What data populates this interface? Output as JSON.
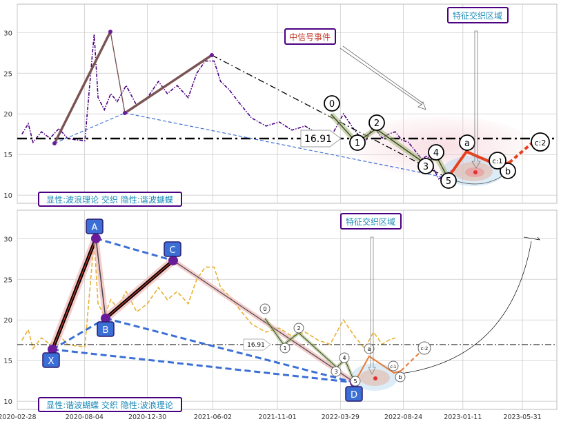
{
  "chart_data": [
    {
      "type": "line",
      "panel": "top",
      "ylim": [
        9,
        33.5
      ],
      "yticks": [
        10,
        15,
        20,
        25,
        30
      ],
      "xlim": [
        "2020-02-28",
        "2023-08-20"
      ],
      "grid": true,
      "hline": {
        "value": 16.91,
        "label": "16.91"
      },
      "series": [
        {
          "color": "#4b0082",
          "style": "dash-dot",
          "x": [
            "2020-03-10",
            "2020-03-25",
            "2020-04-05",
            "2020-04-25",
            "2020-05-15",
            "2020-06-05",
            "2020-06-25",
            "2020-07-15",
            "2020-08-05",
            "2020-08-22",
            "2020-08-27",
            "2020-09-05",
            "2020-09-20",
            "2020-10-05",
            "2020-10-20",
            "2020-11-10",
            "2020-12-05",
            "2020-12-30",
            "2021-01-25",
            "2021-02-15",
            "2021-03-10",
            "2021-04-05",
            "2021-04-25",
            "2021-05-15",
            "2021-06-05",
            "2021-06-20",
            "2021-07-10",
            "2021-08-01",
            "2021-09-01",
            "2021-10-05",
            "2021-11-05",
            "2021-12-05",
            "2022-01-05",
            "2022-02-05",
            "2022-03-05",
            "2022-04-05",
            "2022-05-01",
            "2022-05-25",
            "2022-06-15",
            "2022-07-05",
            "2022-07-20",
            "2022-08-05",
            "2022-08-20",
            "2022-09-05",
            "2022-09-20",
            "2022-10-05",
            "2022-10-20",
            "2022-11-01",
            "2022-11-15",
            "2022-12-01",
            "2022-12-15"
          ],
          "y": [
            17.5,
            18.8,
            16.5,
            17.8,
            17.0,
            18.2,
            17.0,
            16.8,
            16.7,
            27.0,
            29.8,
            22.0,
            20.5,
            22.5,
            21.5,
            23.5,
            21.0,
            22.0,
            24.0,
            22.5,
            23.5,
            22.0,
            25.0,
            26.5,
            26.5,
            24.0,
            23.0,
            21.5,
            19.5,
            18.5,
            19.0,
            18.0,
            18.5,
            17.5,
            17.0,
            20.0,
            18.0,
            16.5,
            18.5,
            17.0,
            17.5,
            17.8,
            16.8,
            16.5,
            15.5,
            14.5,
            14.8,
            13.5,
            12.0,
            12.5,
            13.0
          ]
        }
      ],
      "harmonic_legs": [
        {
          "from": [
            "2020-03-20",
            16.3
          ],
          "to": [
            "2020-08-28",
            29.8
          ]
        },
        {
          "from": [
            "2020-08-28",
            29.8
          ],
          "to": [
            "2020-10-01",
            20.0
          ]
        },
        {
          "from": [
            "2020-10-01",
            20.0
          ],
          "to": [
            "2021-06-05",
            27.1
          ]
        }
      ],
      "wave_labels": [
        "0",
        "1",
        "2",
        "3",
        "4",
        "5",
        "a",
        "b",
        "c:1",
        "c:2"
      ],
      "wave_points": [
        {
          "label": "0",
          "x": "2022-05-30",
          "y": 20.3
        },
        {
          "label": "1",
          "x": "2022-06-25",
          "y": 16.7
        },
        {
          "label": "2",
          "x": "2022-07-25",
          "y": 18.3
        },
        {
          "label": "3",
          "x": "2022-09-20",
          "y": 13.8
        },
        {
          "label": "4",
          "x": "2022-10-05",
          "y": 15.0
        },
        {
          "label": "5",
          "x": "2022-10-25",
          "y": 12.0
        },
        {
          "label": "a",
          "x": "2022-12-05",
          "y": 15.5
        },
        {
          "label": "b",
          "x": "2023-01-10",
          "y": 13.5
        },
        {
          "label": "c:1",
          "x": "2022-12-25",
          "y": 13.3
        },
        {
          "label": "c:2",
          "x": "2023-02-15",
          "y": 17.0
        }
      ],
      "annotations": [
        "中信号事件",
        "特征交织区域"
      ],
      "caption": "显性:波浪理论 交织 隐性:谐波蝴蝶"
    },
    {
      "type": "line",
      "panel": "bottom",
      "ylim": [
        9,
        33.5
      ],
      "yticks": [
        10,
        15,
        20,
        25,
        30
      ],
      "xlim": [
        "2020-02-28",
        "2023-08-20"
      ],
      "grid": true,
      "hline": {
        "value": 16.91,
        "label": "16.91"
      },
      "series": [
        {
          "color": "#e8b030",
          "style": "dash",
          "x": [
            "2020-03-10",
            "2020-03-25",
            "2020-04-05",
            "2020-04-25",
            "2020-05-15",
            "2020-06-05",
            "2020-06-25",
            "2020-07-15",
            "2020-08-05",
            "2020-08-22",
            "2020-08-27",
            "2020-09-05",
            "2020-09-20",
            "2020-10-05",
            "2020-10-20",
            "2020-11-10",
            "2020-12-05",
            "2020-12-30",
            "2021-01-25",
            "2021-02-15",
            "2021-03-10",
            "2021-04-05",
            "2021-04-25",
            "2021-05-15",
            "2021-06-05",
            "2021-06-20",
            "2021-07-10",
            "2021-08-01",
            "2021-09-01",
            "2021-10-05",
            "2021-11-05",
            "2021-12-05",
            "2022-01-05",
            "2022-02-05",
            "2022-03-05",
            "2022-04-05",
            "2022-05-01",
            "2022-05-25",
            "2022-06-15",
            "2022-07-05",
            "2022-07-20",
            "2022-08-05"
          ],
          "y": [
            17.5,
            18.8,
            16.5,
            17.8,
            17.0,
            18.2,
            17.0,
            16.8,
            16.7,
            27.0,
            29.8,
            22.0,
            20.5,
            22.5,
            21.5,
            23.5,
            21.0,
            22.0,
            24.0,
            22.5,
            23.5,
            22.0,
            25.0,
            26.5,
            26.5,
            24.0,
            23.0,
            21.5,
            19.5,
            18.5,
            19.0,
            18.0,
            18.5,
            17.5,
            17.0,
            20.0,
            18.0,
            16.5,
            18.5,
            17.0,
            17.5,
            17.8
          ]
        }
      ],
      "harmonic_points": [
        {
          "label": "X",
          "x": "2020-04-01",
          "y": 16.3
        },
        {
          "label": "A",
          "x": "2020-08-28",
          "y": 29.8
        },
        {
          "label": "B",
          "x": "2020-10-01",
          "y": 20.2
        },
        {
          "label": "C",
          "x": "2021-03-25",
          "y": 27.2
        },
        {
          "label": "D",
          "x": "2022-06-15",
          "y": 12.2
        }
      ],
      "wave_labels": [
        "0",
        "1",
        "2",
        "3",
        "4",
        "5",
        "a",
        "b",
        "c:1",
        "c:2"
      ],
      "annotations": [
        "特征交织区域"
      ],
      "caption": "显性:谐波蝴蝶 交织 隐性:波浪理论"
    }
  ],
  "xaxis": {
    "ticks": [
      "2020-02-28",
      "2020-08-04",
      "2020-12-30",
      "2021-06-02",
      "2021-11-01",
      "2022-03-29",
      "2022-08-24",
      "2023-01-11",
      "2023-05-31"
    ]
  },
  "colors": {
    "grid": "#cccccc",
    "purple": "#4b0082",
    "accent_red": "#e8401c",
    "label_blue": "#3b6fd6",
    "caption_border": "#4b0082",
    "caption_text": "#1a8ab8"
  }
}
